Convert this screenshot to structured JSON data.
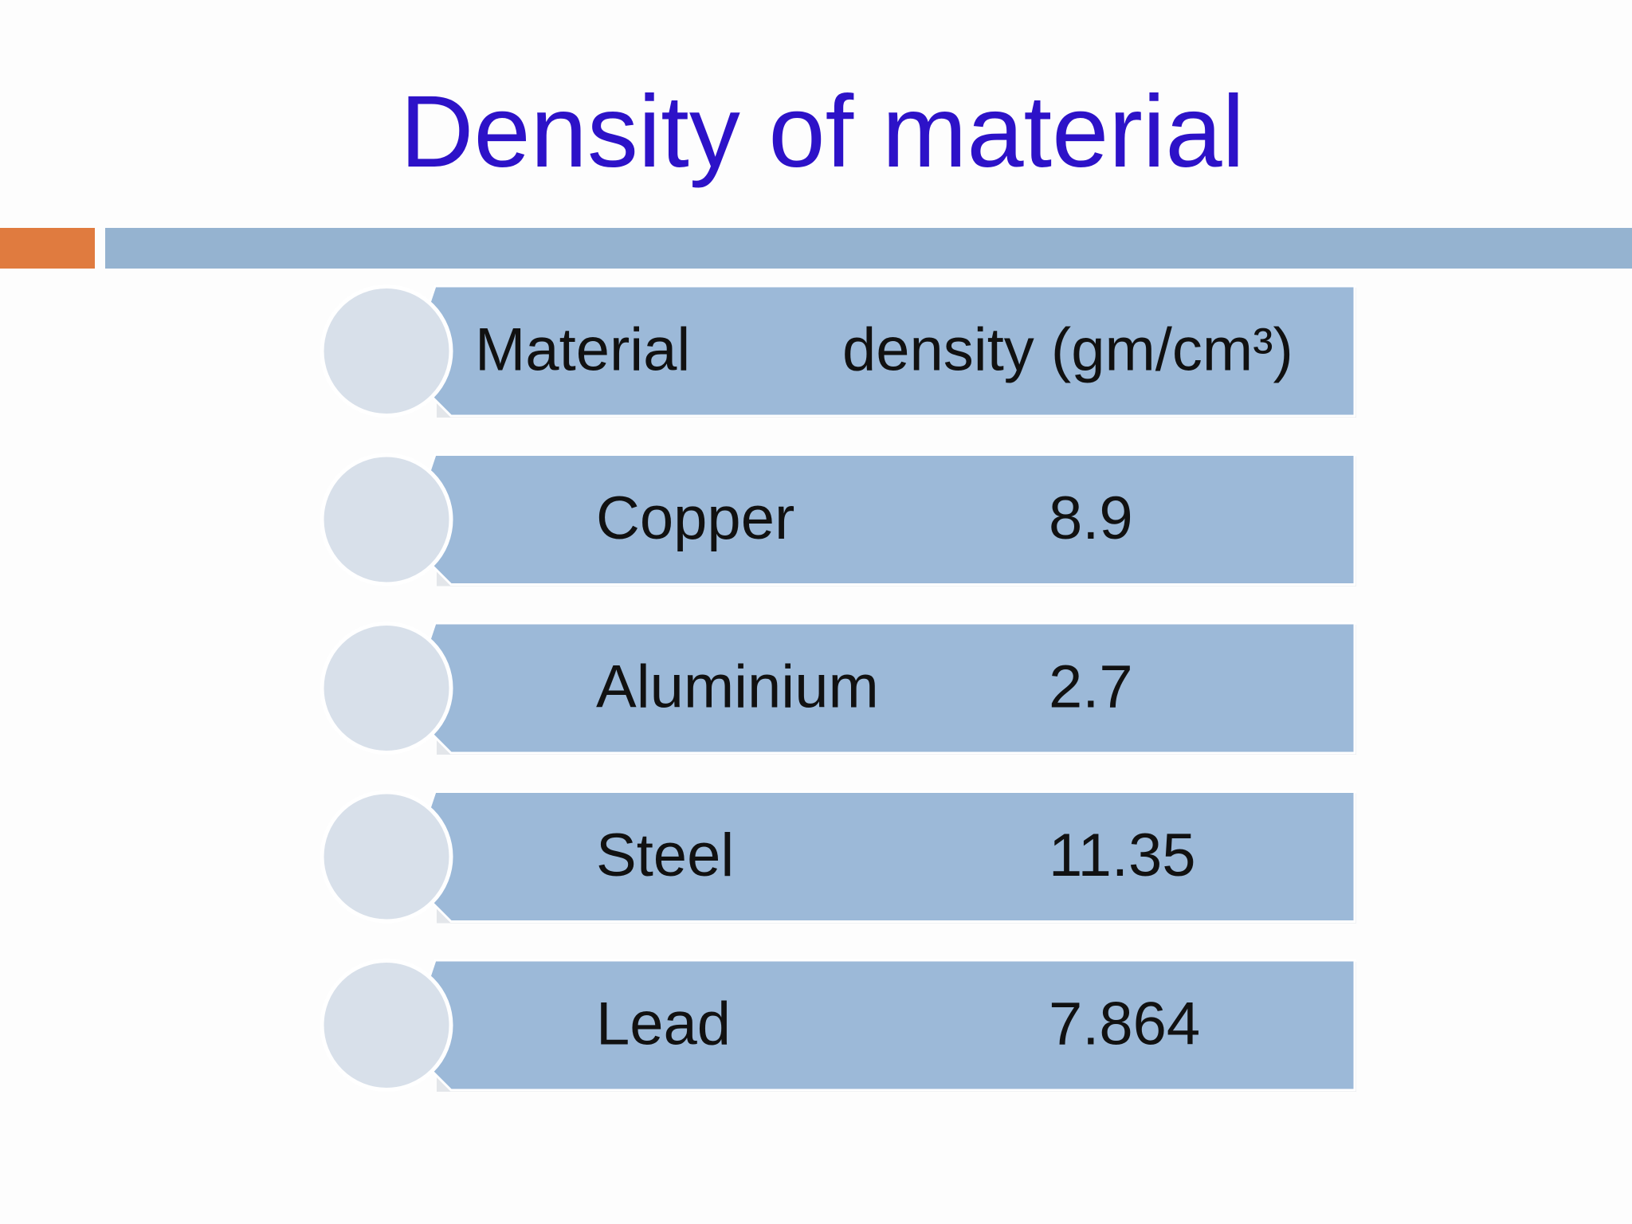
{
  "title": "Density of material",
  "table": {
    "header": [
      "Material",
      "density (gm/cm³)"
    ],
    "rows": [
      [
        "Copper",
        8.9
      ],
      [
        "Aluminium",
        2.7
      ],
      [
        "Steel",
        11.35
      ],
      [
        "Lead",
        7.864
      ]
    ]
  }
}
